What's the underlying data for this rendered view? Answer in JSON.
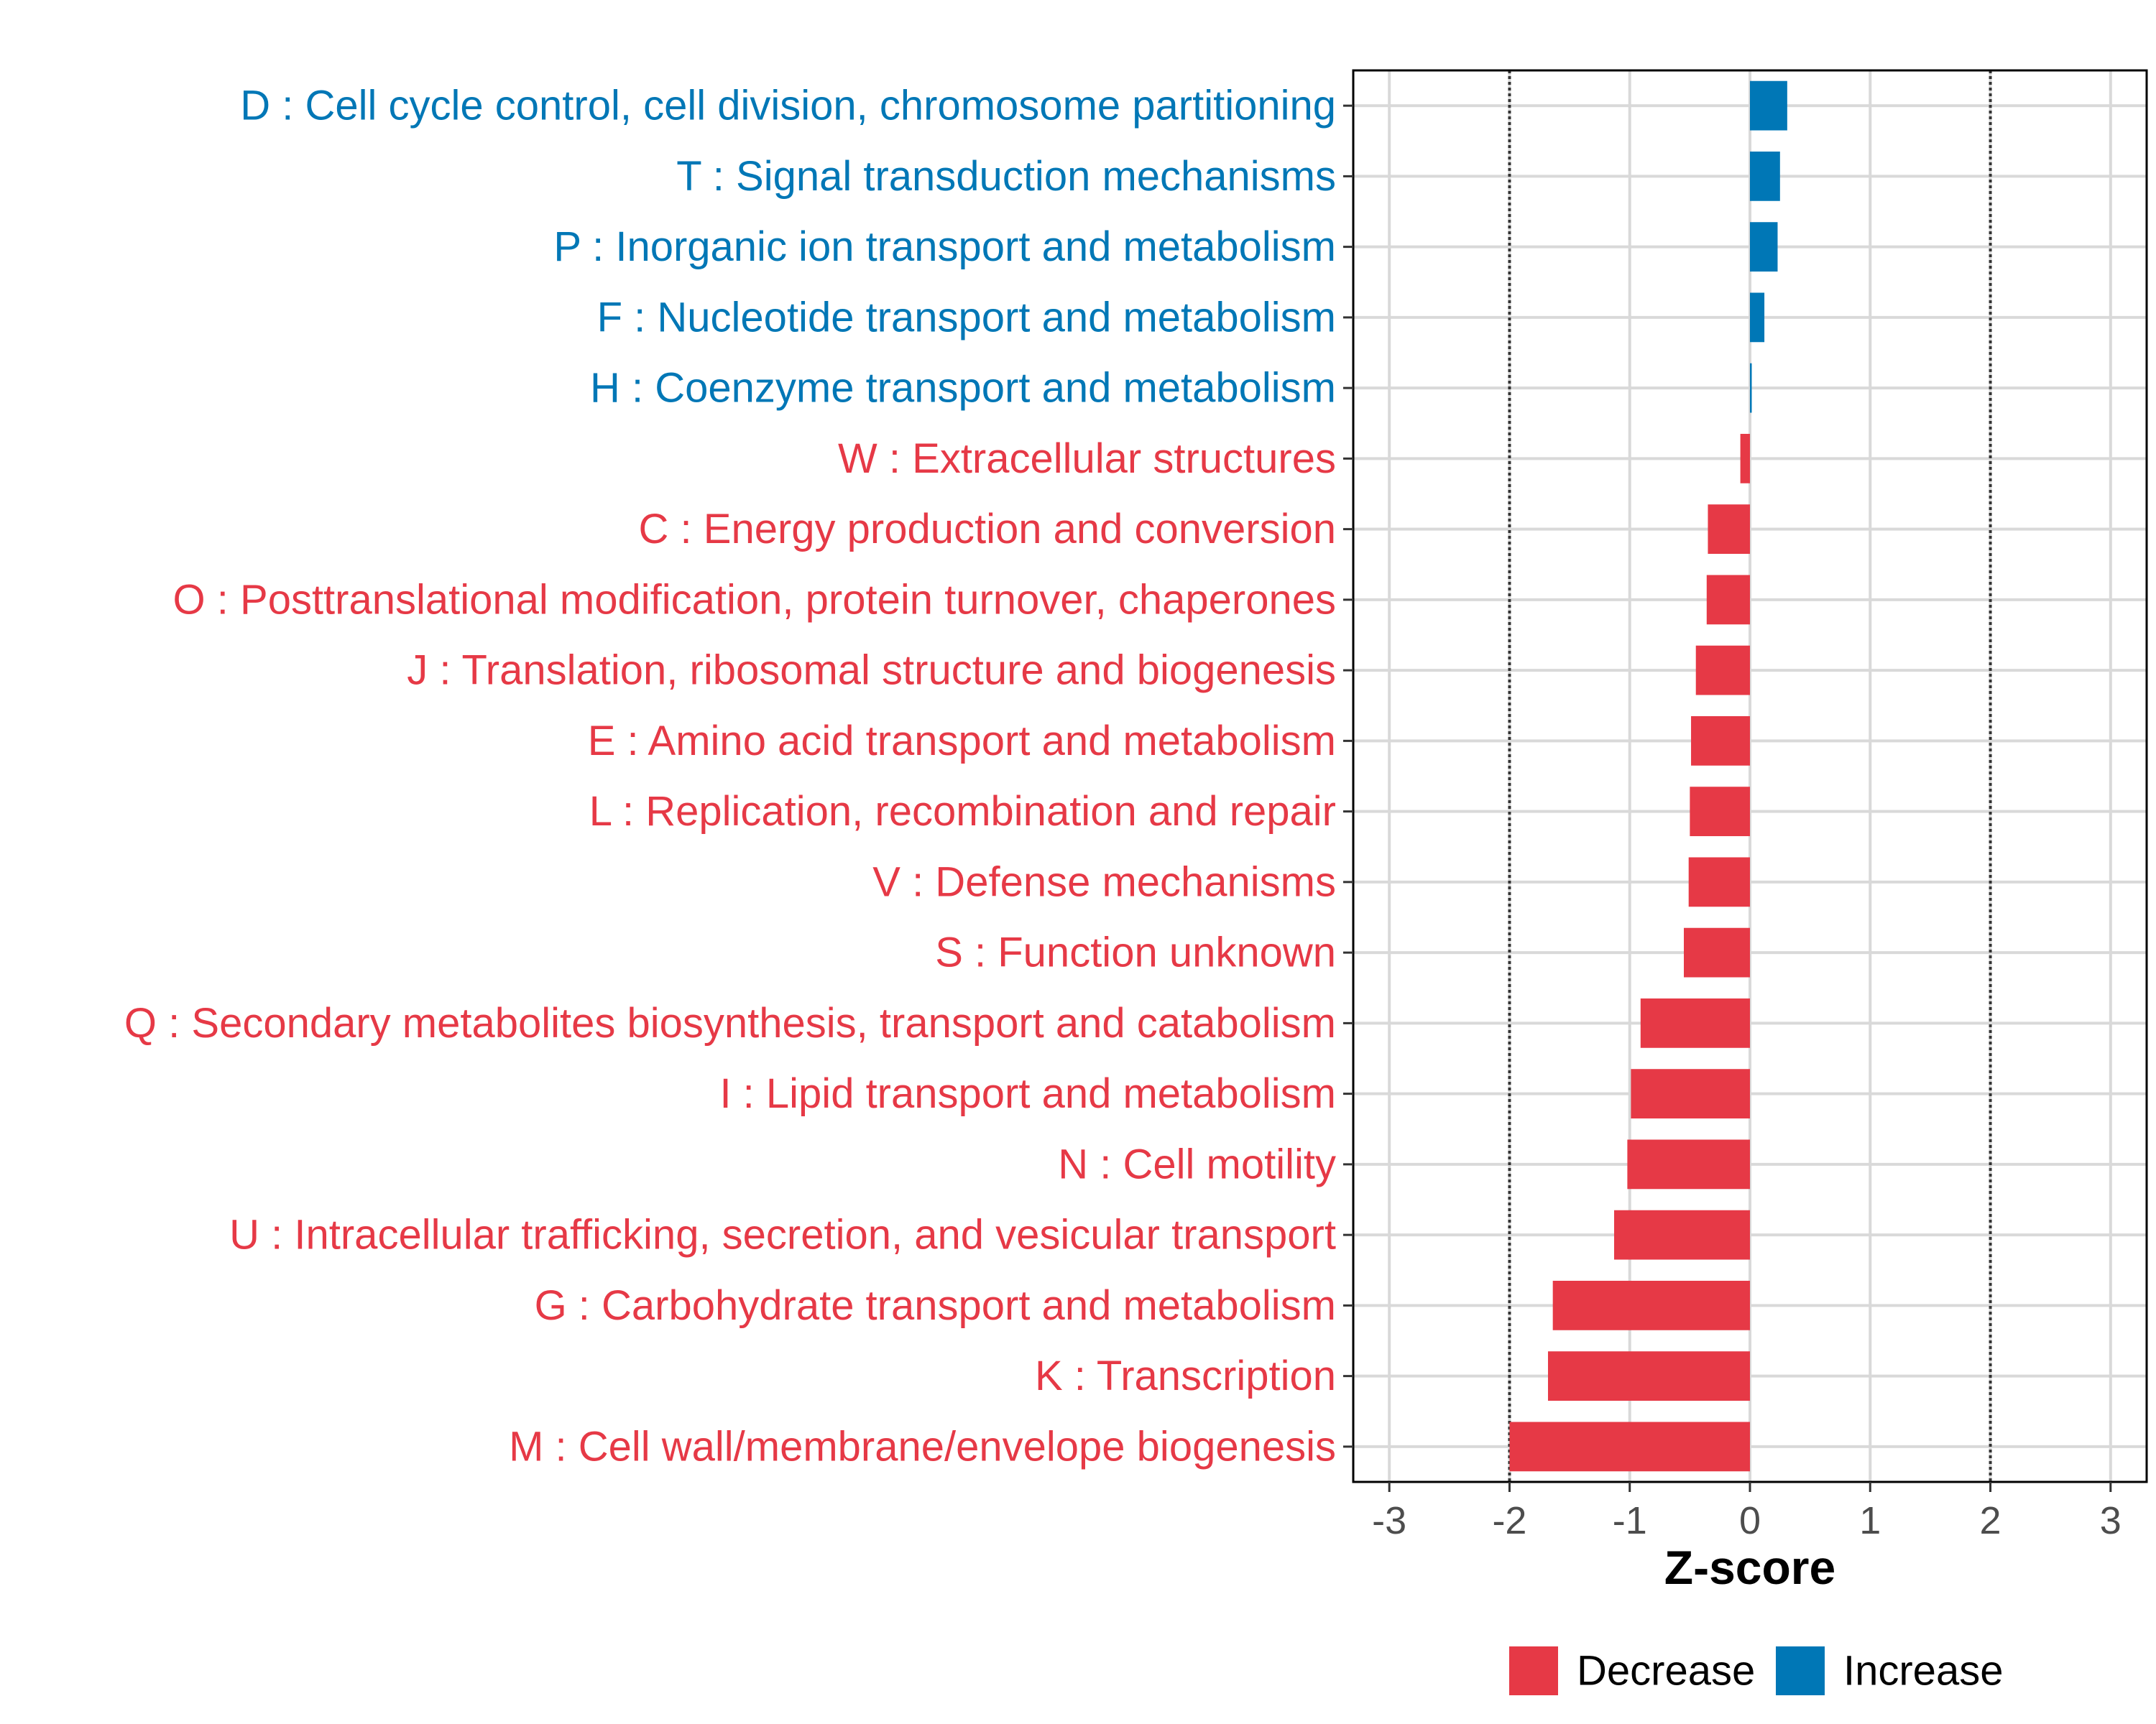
{
  "chart_data": {
    "type": "bar",
    "orientation": "horizontal",
    "title": "",
    "xlabel": "Z-score",
    "ylabel": "",
    "xlim": [
      -3.3,
      3.3
    ],
    "xticks": [
      -3,
      -2,
      -1,
      0,
      1,
      2,
      3
    ],
    "xtick_labels": [
      "-3",
      "-2",
      "-1",
      "0",
      "1",
      "2",
      "3"
    ],
    "reference_lines": [
      -2,
      2
    ],
    "grid": true,
    "legend": {
      "position": "bottom",
      "entries": [
        {
          "label": "Decrease",
          "color": "#E63946"
        },
        {
          "label": "Increase",
          "color": "#0077B6"
        }
      ]
    },
    "categories": [
      "D : Cell cycle control, cell division, chromosome partitioning",
      "T : Signal transduction mechanisms",
      "P : Inorganic ion transport and metabolism",
      "F : Nucleotide transport and metabolism",
      "H : Coenzyme transport and metabolism",
      "W : Extracellular structures",
      "C : Energy production and conversion",
      "O : Posttranslational modification, protein turnover, chaperones",
      "J : Translation, ribosomal structure and biogenesis",
      "E : Amino acid transport and metabolism",
      "L : Replication, recombination and repair",
      "V : Defense mechanisms",
      "S : Function unknown",
      "Q : Secondary metabolites biosynthesis, transport and catabolism",
      "I : Lipid transport and metabolism",
      "N : Cell motility",
      "U : Intracellular trafficking, secretion, and vesicular transport",
      "G : Carbohydrate transport and metabolism",
      "K : Transcription",
      "M : Cell wall/membrane/envelope biogenesis"
    ],
    "values": [
      0.31,
      0.25,
      0.23,
      0.12,
      0.01,
      -0.08,
      -0.35,
      -0.36,
      -0.45,
      -0.49,
      -0.5,
      -0.51,
      -0.55,
      -0.91,
      -0.99,
      -1.02,
      -1.13,
      -1.64,
      -1.68,
      -2.0
    ],
    "directions": [
      "Increase",
      "Increase",
      "Increase",
      "Increase",
      "Increase",
      "Decrease",
      "Decrease",
      "Decrease",
      "Decrease",
      "Decrease",
      "Decrease",
      "Decrease",
      "Decrease",
      "Decrease",
      "Decrease",
      "Decrease",
      "Decrease",
      "Decrease",
      "Decrease",
      "Decrease"
    ]
  }
}
